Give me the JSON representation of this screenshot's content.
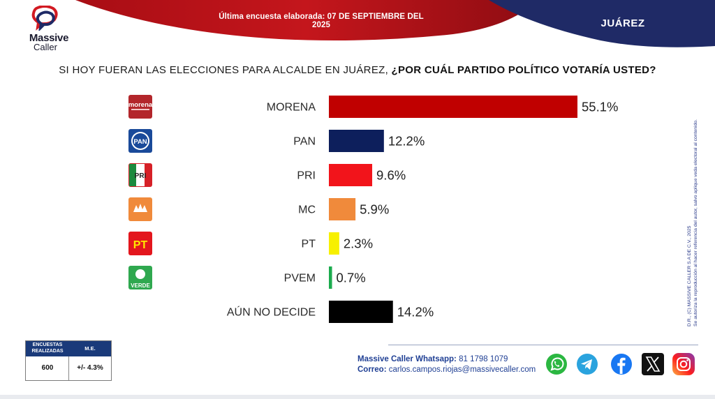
{
  "header": {
    "survey_date": "Última encuesta elaborada: 07 DE SEPTIEMBRE DEL 2025",
    "region": "JUÁREZ",
    "red": "#c4161c",
    "navy": "#1f2a66"
  },
  "logo": {
    "line1": "Massive",
    "line2": "Caller"
  },
  "question": {
    "part1": "SI HOY FUERAN LAS ELECCIONES PARA ALCALDE EN JUÁREZ, ",
    "part2": "¿POR CUÁL PARTIDO POLÍTICO VOTARÍA USTED?"
  },
  "chart_data": {
    "type": "bar",
    "orientation": "horizontal",
    "categories": [
      "MORENA",
      "PAN",
      "PRI",
      "MC",
      "PT",
      "PVEM",
      "AÚN NO DECIDE"
    ],
    "values": [
      55.1,
      12.2,
      9.6,
      5.9,
      2.3,
      0.7,
      14.2
    ],
    "value_labels": [
      "55.1%",
      "12.2%",
      "9.6%",
      "5.9%",
      "2.3%",
      "0.7%",
      "14.2%"
    ],
    "colors": [
      "#c00000",
      "#0d1f5c",
      "#f2141b",
      "#f08a3b",
      "#f7f000",
      "#1bab4e",
      "#000000"
    ],
    "party_logos": [
      {
        "label": "morena",
        "color": "#b3262b",
        "icon": "morena-logo"
      },
      {
        "label": "PAN",
        "color": "#1a4a9a",
        "icon": "pan-logo"
      },
      {
        "label": "PRI",
        "color": "#d62027",
        "icon": "pri-logo"
      },
      {
        "label": "",
        "color": "#f08a3b",
        "icon": "mc-logo"
      },
      {
        "label": "PT",
        "color": "#e3161d",
        "icon": "pt-logo"
      },
      {
        "label": "VERDE",
        "color": "#2fa84f",
        "icon": "pvem-logo"
      },
      null
    ],
    "grid": false,
    "legend": "none"
  },
  "side_note": {
    "line1": "D.R., (C) MASSIVE CALLER S.A DE C.V., 2025",
    "line2": "Se autoriza la reproducción al hacer referencia del autor, salvo aplique veda electoral al contenido."
  },
  "stats": {
    "header_surveys": "ENCUESTAS REALIZADAS",
    "header_me": "M.E.",
    "surveys_value": "600",
    "me_value": "+/- 4.3%"
  },
  "contact": {
    "whatsapp_label": "Massive Caller Whatsapp:",
    "whatsapp_value": "81 1798 1079",
    "email_label": "Correo:",
    "email_value": "carlos.campos.riojas@massivecaller.com"
  },
  "social_icons": [
    "whatsapp-icon",
    "telegram-icon",
    "facebook-icon",
    "x-icon",
    "instagram-icon"
  ]
}
